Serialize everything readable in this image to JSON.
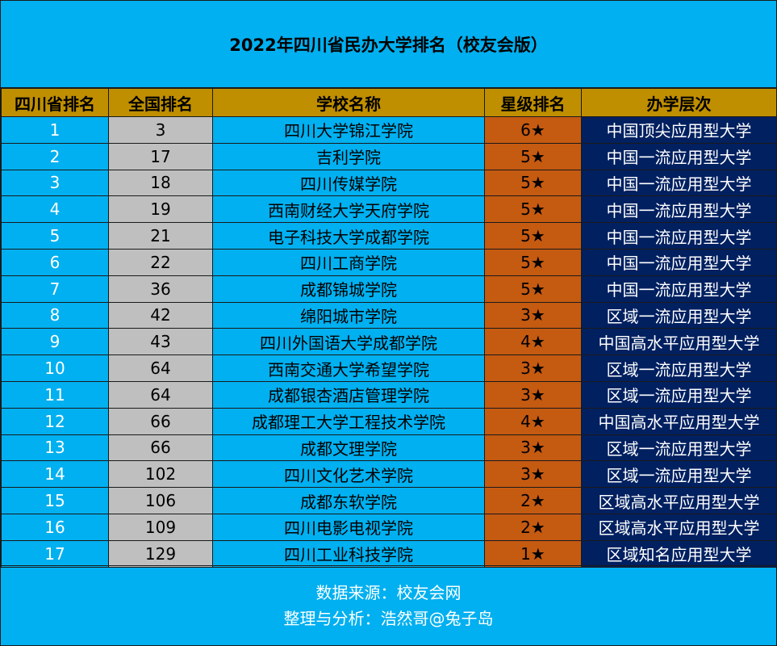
{
  "title": "2022年四川省民办大学排名（校友会版）",
  "colors": {
    "background": "#00b0f0",
    "header": "#bf8f00",
    "national_rank_cell": "#bfbfbf",
    "star_cell": "#c55a11",
    "level_cell": "#002060"
  },
  "table": {
    "headers": [
      "四川省排名",
      "全国排名",
      "学校名称",
      "星级排名",
      "办学层次"
    ],
    "rows": [
      [
        "1",
        "3",
        "四川大学锦江学院",
        "6★",
        "中国顶尖应用型大学"
      ],
      [
        "2",
        "17",
        "吉利学院",
        "5★",
        "中国一流应用型大学"
      ],
      [
        "3",
        "18",
        "四川传媒学院",
        "5★",
        "中国一流应用型大学"
      ],
      [
        "4",
        "19",
        "西南财经大学天府学院",
        "5★",
        "中国一流应用型大学"
      ],
      [
        "5",
        "21",
        "电子科技大学成都学院",
        "5★",
        "中国一流应用型大学"
      ],
      [
        "6",
        "22",
        "四川工商学院",
        "5★",
        "中国一流应用型大学"
      ],
      [
        "7",
        "36",
        "成都锦城学院",
        "5★",
        "中国一流应用型大学"
      ],
      [
        "8",
        "42",
        "绵阳城市学院",
        "3★",
        "区域一流应用型大学"
      ],
      [
        "9",
        "43",
        "四川外国语大学成都学院",
        "4★",
        "中国高水平应用型大学"
      ],
      [
        "10",
        "64",
        "西南交通大学希望学院",
        "3★",
        "区域一流应用型大学"
      ],
      [
        "11",
        "64",
        "成都银杏酒店管理学院",
        "3★",
        "区域一流应用型大学"
      ],
      [
        "12",
        "66",
        "成都理工大学工程技术学院",
        "4★",
        "中国高水平应用型大学"
      ],
      [
        "13",
        "66",
        "成都文理学院",
        "3★",
        "区域一流应用型大学"
      ],
      [
        "14",
        "102",
        "四川文化艺术学院",
        "3★",
        "区域一流应用型大学"
      ],
      [
        "15",
        "106",
        "成都东软学院",
        "2★",
        "区域高水平应用型大学"
      ],
      [
        "16",
        "109",
        "四川电影电视学院",
        "2★",
        "区域高水平应用型大学"
      ],
      [
        "17",
        "129",
        "四川工业科技学院",
        "1★",
        "区域知名应用型大学"
      ]
    ]
  },
  "footer": {
    "source": "数据来源：校友会网",
    "credit": "整理与分析：浩然哥@兔子岛"
  }
}
